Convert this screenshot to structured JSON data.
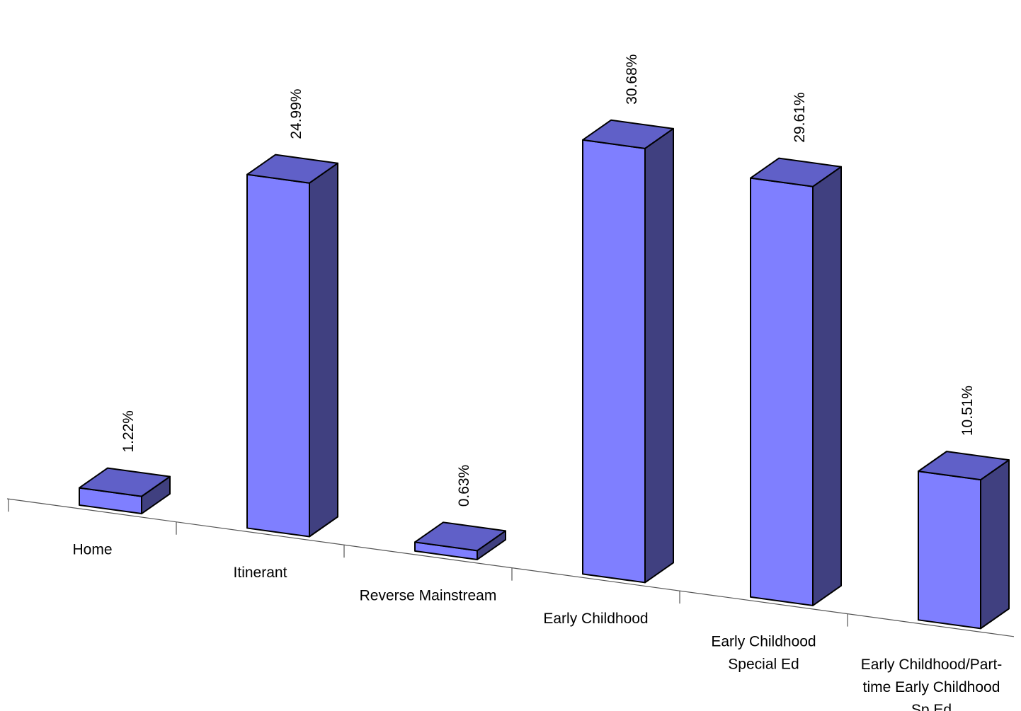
{
  "chart_data": {
    "type": "bar",
    "categories": [
      [
        "Home"
      ],
      [
        "Itinerant"
      ],
      [
        "Reverse Mainstream"
      ],
      [
        "Early Childhood"
      ],
      [
        "Early Childhood",
        "Special Ed"
      ],
      [
        "Early Childhood/Part-",
        "time Early Childhood",
        "Sp Ed"
      ]
    ],
    "values": [
      1.22,
      24.99,
      0.63,
      30.68,
      29.61,
      10.51
    ],
    "value_labels": [
      "1.22%",
      "24.99%",
      "0.63%",
      "30.68%",
      "29.61%",
      "10.51%"
    ],
    "title": "",
    "xlabel": "",
    "ylabel": "",
    "ylim": [
      0,
      31
    ],
    "grid": false,
    "legend": "none",
    "colors": {
      "front": "#7f7fff",
      "top": "#6060c8",
      "side": "#404080",
      "stroke": "#000000"
    }
  }
}
